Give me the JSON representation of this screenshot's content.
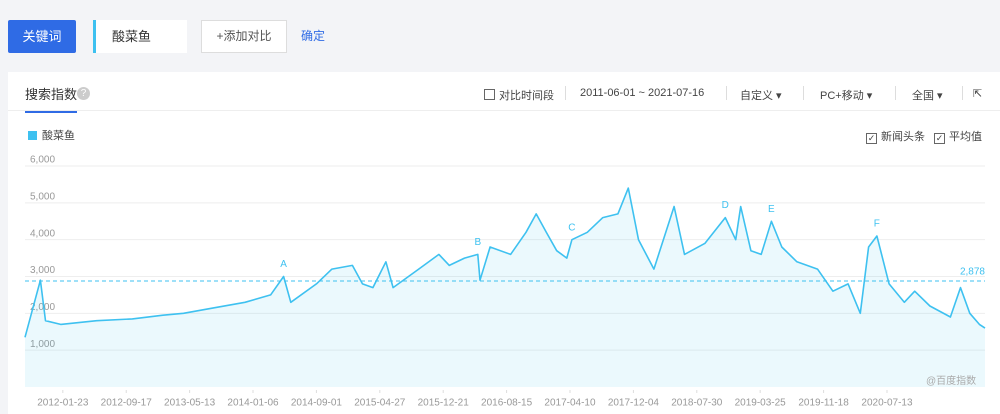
{
  "ui": {
    "keyword_button": "关键词",
    "keyword": "酸菜鱼",
    "add_compare": "+添加对比",
    "confirm": "确定",
    "tab": "搜索指数",
    "compare_period": "对比时间段",
    "date_range": "2011-06-01 ~ 2021-07-16",
    "custom": "自定义",
    "device": "PC+移动",
    "region": "全国",
    "news": "新闻头条",
    "average": "平均值",
    "watermark": "@百度指数"
  },
  "chart_data": {
    "type": "line",
    "x": [
      "2011-09-03",
      "2011-10-31",
      "2011-11-19",
      "2012-01-15",
      "2012-05-29",
      "2012-10-10",
      "2013-02-02",
      "2013-04-20",
      "2013-08-13",
      "2013-12-07",
      "2014-03-13",
      "2014-05-01",
      "2014-05-28",
      "2014-09-01",
      "2014-10-29",
      "2015-01-14",
      "2015-02-21",
      "2015-04-01",
      "2015-05-20",
      "2015-06-16",
      "2015-09-20",
      "2015-12-05",
      "2016-01-13",
      "2016-03-10",
      "2016-04-29",
      "2016-05-07",
      "2016-06-14",
      "2016-08-30",
      "2016-10-27",
      "2016-12-04",
      "2017-01-11",
      "2017-02-19",
      "2017-03-29",
      "2017-04-17",
      "2017-06-14",
      "2017-08-11",
      "2017-10-07",
      "2017-11-15",
      "2017-12-23",
      "2018-02-19",
      "2018-05-06",
      "2018-06-14",
      "2018-08-30",
      "2018-11-14",
      "2018-12-23",
      "2019-01-11",
      "2019-02-18",
      "2019-03-29",
      "2019-05-06",
      "2019-06-14",
      "2019-08-10",
      "2019-10-26",
      "2019-12-23",
      "2020-02-18",
      "2020-04-04",
      "2020-05-05",
      "2020-06-05",
      "2020-07-21",
      "2020-09-16",
      "2020-10-25",
      "2020-12-21",
      "2021-03-08",
      "2021-04-15",
      "2021-05-20",
      "2021-06-25",
      "2021-07-16"
    ],
    "series": [
      {
        "name": "酸菜鱼",
        "color": "#3ec1f0",
        "values": [
          1350,
          2900,
          1800,
          1700,
          1800,
          1850,
          1950,
          2000,
          2150,
          2300,
          2500,
          3000,
          2300,
          2800,
          3200,
          3300,
          2800,
          2700,
          3400,
          2700,
          3200,
          3600,
          3300,
          3500,
          3600,
          2900,
          3800,
          3600,
          4200,
          4700,
          4200,
          3700,
          3500,
          4000,
          4200,
          4600,
          4700,
          5400,
          4000,
          3200,
          4900,
          3600,
          3900,
          4600,
          4000,
          4900,
          3700,
          3600,
          4500,
          3800,
          3400,
          3200,
          2600,
          2800,
          2000,
          3800,
          4100,
          2800,
          2300,
          2600,
          2200,
          1900,
          2700,
          2000,
          1700,
          1600
        ]
      }
    ],
    "xlim": [
      "2011-09-03",
      "2021-07-16"
    ],
    "xticks": [
      "2012-01-23",
      "2012-09-17",
      "2013-05-13",
      "2014-01-06",
      "2014-09-01",
      "2015-04-27",
      "2015-12-21",
      "2016-08-15",
      "2017-04-10",
      "2017-12-04",
      "2018-07-30",
      "2019-03-25",
      "2019-11-18",
      "2020-07-13"
    ],
    "ylim": [
      0,
      6000
    ],
    "yticks": [
      {
        "value": 1000,
        "label": "1,000"
      },
      {
        "value": 2000,
        "label": "2,000"
      },
      {
        "value": 3000,
        "label": "3,000"
      },
      {
        "value": 4000,
        "label": "4,000"
      },
      {
        "value": 5000,
        "label": "5,000"
      },
      {
        "value": 6000,
        "label": "6,000"
      }
    ],
    "grid": true,
    "average": {
      "value": 2878,
      "label": "2,878"
    },
    "annotations": [
      {
        "label": "A",
        "x": "2014-05-01"
      },
      {
        "label": "B",
        "x": "2016-04-29"
      },
      {
        "label": "C",
        "x": "2017-04-17"
      },
      {
        "label": "D",
        "x": "2018-11-14"
      },
      {
        "label": "E",
        "x": "2019-05-06"
      },
      {
        "label": "F",
        "x": "2020-06-05"
      }
    ]
  }
}
